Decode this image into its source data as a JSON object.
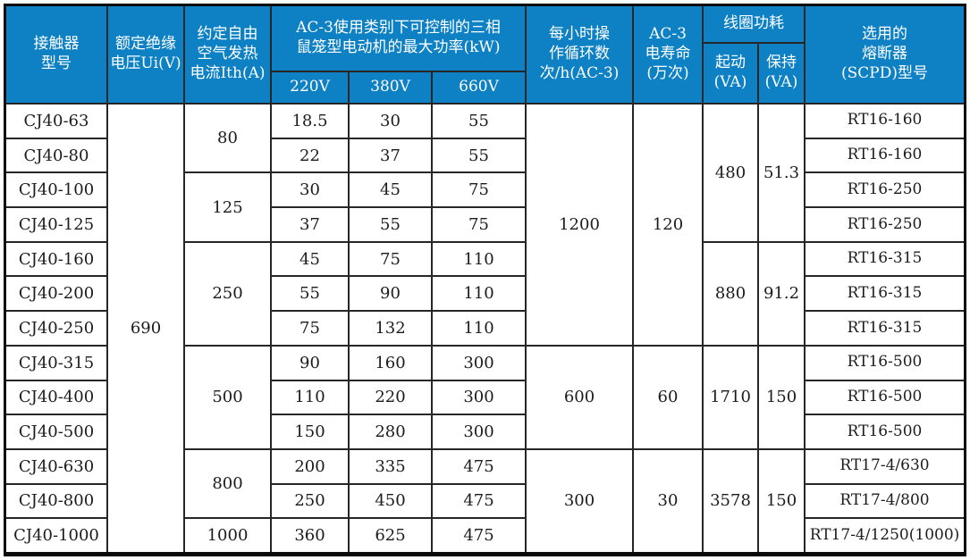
{
  "theme": {
    "header_bg": "#0e80c4",
    "header_text": "#ffffff",
    "body_bg": "#ffffff",
    "body_text": "#1c1c1c",
    "grid_line": "#262626"
  },
  "header": {
    "model": "接触器\n型号",
    "insulation_voltage": "额定绝缘\n电压Ui(V)",
    "thermal_current": "约定自由\n空气发热\n电流Ith(A)",
    "ac3_power_group": "AC-3使用类别下可控制的三相\n鼠笼型电动机的最大功率(kW)",
    "voltage_220": "220V",
    "voltage_380": "380V",
    "voltage_660": "660V",
    "hourly_cycles": "每小时操\n作循环数\n次/h(AC-3)",
    "electrical_life": "AC-3\n电寿命\n(万次)",
    "coil_power_group": "线圈功耗",
    "coil_start": "起动\n(VA)",
    "coil_hold": "保持\n(VA)",
    "fuse": "选用的\n熔断器\n(SCPD)型号"
  },
  "body": {
    "insulation_voltage": "690",
    "rows": [
      {
        "model": "CJ40-63",
        "p220": "18.5",
        "p380": "30",
        "p660": "55",
        "fuse": "RT16-160"
      },
      {
        "model": "CJ40-80",
        "p220": "22",
        "p380": "37",
        "p660": "55",
        "fuse": "RT16-160"
      },
      {
        "model": "CJ40-100",
        "p220": "30",
        "p380": "45",
        "p660": "75",
        "fuse": "RT16-250"
      },
      {
        "model": "CJ40-125",
        "p220": "37",
        "p380": "55",
        "p660": "75",
        "fuse": "RT16-250"
      },
      {
        "model": "CJ40-160",
        "p220": "45",
        "p380": "75",
        "p660": "110",
        "fuse": "RT16-315"
      },
      {
        "model": "CJ40-200",
        "p220": "55",
        "p380": "90",
        "p660": "110",
        "fuse": "RT16-315"
      },
      {
        "model": "CJ40-250",
        "p220": "75",
        "p380": "132",
        "p660": "110",
        "fuse": "RT16-315"
      },
      {
        "model": "CJ40-315",
        "p220": "90",
        "p380": "160",
        "p660": "300",
        "fuse": "RT16-500"
      },
      {
        "model": "CJ40-400",
        "p220": "110",
        "p380": "220",
        "p660": "300",
        "fuse": "RT16-500"
      },
      {
        "model": "CJ40-500",
        "p220": "150",
        "p380": "280",
        "p660": "300",
        "fuse": "RT16-500"
      },
      {
        "model": "CJ40-630",
        "p220": "200",
        "p380": "335",
        "p660": "475",
        "fuse": "RT17-4/630"
      },
      {
        "model": "CJ40-800",
        "p220": "250",
        "p380": "450",
        "p660": "475",
        "fuse": "RT17-4/800"
      },
      {
        "model": "CJ40-1000",
        "p220": "360",
        "p380": "625",
        "p660": "475",
        "fuse": "RT17-4/1250(1000)"
      }
    ],
    "thermal_current_groups": [
      {
        "value": "80"
      },
      {
        "value": "125"
      },
      {
        "value": "250"
      },
      {
        "value": "500"
      },
      {
        "value": "800"
      },
      {
        "value": "1000"
      }
    ],
    "hourly_cycle_groups": [
      {
        "cycles": "1200",
        "life": "120"
      },
      {
        "cycles": "600",
        "life": "60"
      },
      {
        "cycles": "300",
        "life": "30"
      }
    ],
    "coil_groups": [
      {
        "start": "480",
        "hold": "51.3"
      },
      {
        "start": "880",
        "hold": "91.2"
      },
      {
        "start": "1710",
        "hold": "150"
      },
      {
        "start": "3578",
        "hold": "150"
      }
    ]
  }
}
